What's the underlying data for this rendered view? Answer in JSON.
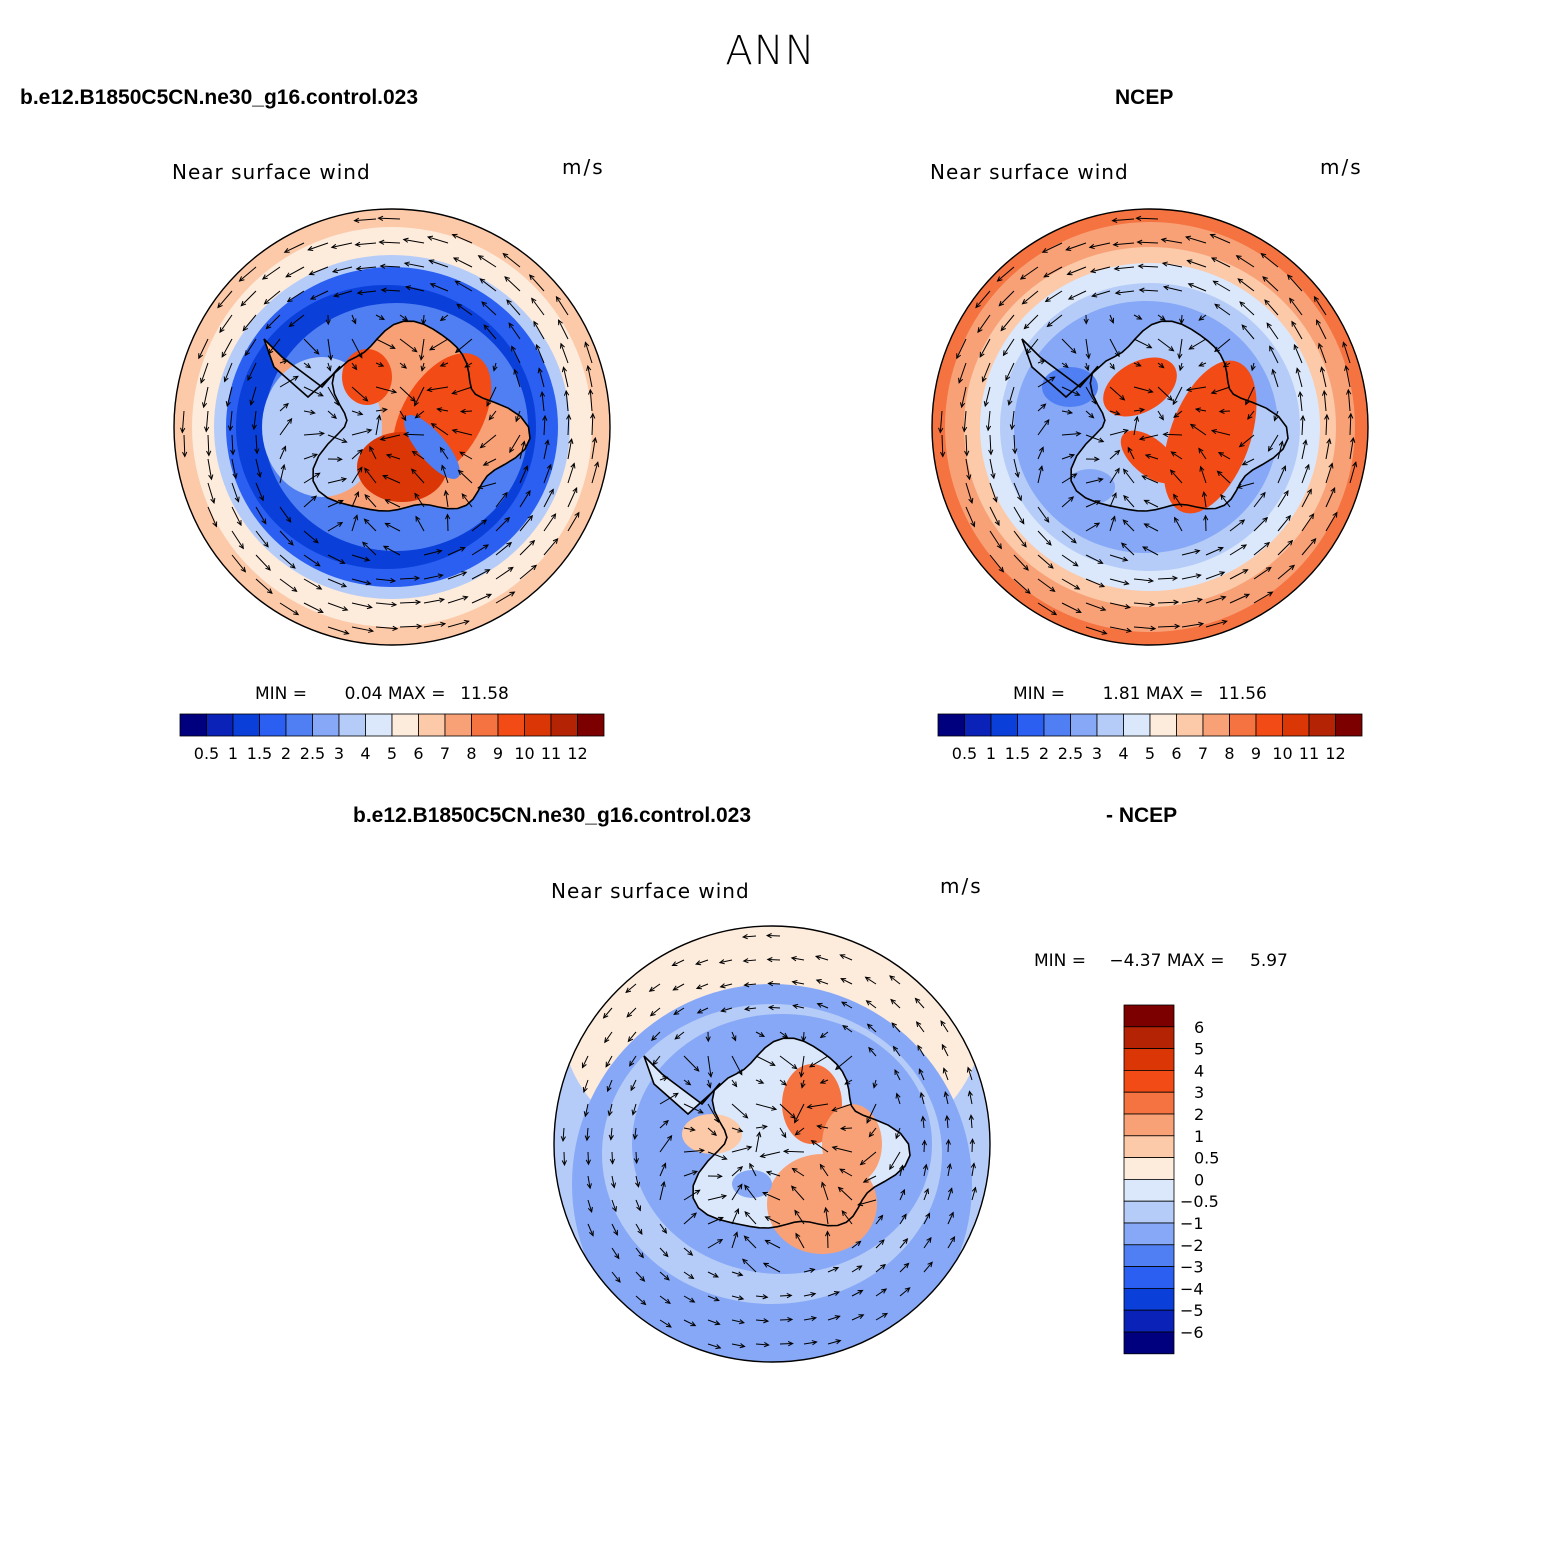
{
  "title": "ANN",
  "colors": {
    "abs_scale": [
      "#00007f",
      "#0b22b8",
      "#0a3fd9",
      "#2a5ff2",
      "#4f7ff2",
      "#86a8f6",
      "#b5ccf8",
      "#dbe8fb",
      "#fdebdc",
      "#fcc9a9",
      "#f8a177",
      "#f47340",
      "#f34b15",
      "#db3606",
      "#b32304",
      "#7d0000"
    ],
    "diff_scale": [
      "#7d0000",
      "#b32304",
      "#db3606",
      "#f34b15",
      "#f47340",
      "#f8a177",
      "#fcc9a9",
      "#fdebdc",
      "#dbe8fb",
      "#b5ccf8",
      "#86a8f6",
      "#4f7ff2",
      "#2a5ff2",
      "#0a3fd9",
      "#0b22b8",
      "#00007f"
    ]
  },
  "chart_data": [
    {
      "type": "heatmap",
      "id": "model",
      "case_title": "b.e12.B1850C5CN.ne30_g16.control.023",
      "label": "Near surface wind",
      "units": "m/s",
      "min_label": "MIN =",
      "min_value": "0.04",
      "max_label": "MAX =",
      "max_value": "11.58",
      "min": 0.04,
      "max": 11.58,
      "projection": "south polar stereographic with wind vectors",
      "colorbar_ticks": [
        "0.5",
        "1",
        "1.5",
        "2",
        "2.5",
        "3",
        "4",
        "5",
        "6",
        "7",
        "8",
        "9",
        "10",
        "11",
        "12"
      ]
    },
    {
      "type": "heatmap",
      "id": "obs",
      "case_title": "NCEP",
      "label": "Near surface wind",
      "units": "m/s",
      "min_label": "MIN =",
      "min_value": "1.81",
      "max_label": "MAX =",
      "max_value": "11.56",
      "min": 1.81,
      "max": 11.56,
      "projection": "south polar stereographic with wind vectors",
      "colorbar_ticks": [
        "0.5",
        "1",
        "1.5",
        "2",
        "2.5",
        "3",
        "4",
        "5",
        "6",
        "7",
        "8",
        "9",
        "10",
        "11",
        "12"
      ]
    },
    {
      "type": "heatmap",
      "id": "diff",
      "case_title": "b.e12.B1850C5CN.ne30_g16.control.023",
      "case_title_2": "- NCEP",
      "label": "Near surface wind",
      "units": "m/s",
      "min_label": "MIN =",
      "min_value": "−4.37",
      "max_label": "MAX =",
      "max_value": "5.97",
      "min": -4.37,
      "max": 5.97,
      "projection": "south polar stereographic with wind vectors",
      "colorbar_ticks": [
        "6",
        "5",
        "4",
        "3",
        "2",
        "1",
        "0.5",
        "0",
        "−0.5",
        "−1",
        "−2",
        "−3",
        "−4",
        "−5",
        "−6"
      ]
    }
  ]
}
